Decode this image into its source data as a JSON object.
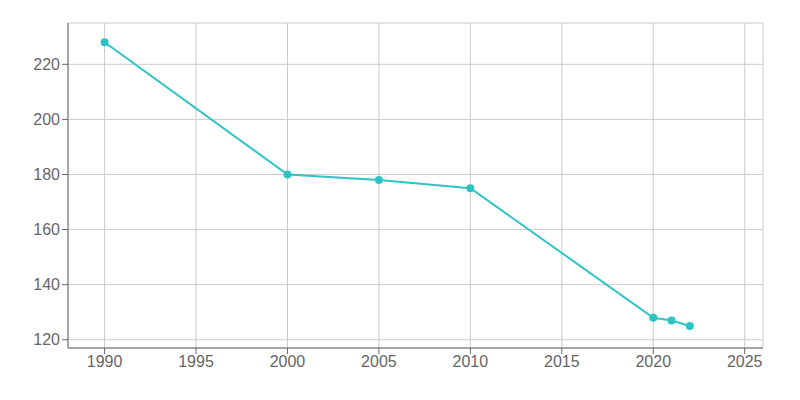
{
  "chart_data": {
    "type": "line",
    "x": [
      1990,
      2000,
      2005,
      2010,
      2020,
      2021,
      2022
    ],
    "values": [
      228,
      180,
      178,
      175,
      128,
      127,
      125
    ],
    "color": "#2ec4c4",
    "marker": "circle",
    "xlim": [
      1988,
      2026
    ],
    "ylim": [
      117,
      235
    ],
    "xticks": [
      1990,
      1995,
      2000,
      2005,
      2010,
      2015,
      2020,
      2025
    ],
    "yticks": [
      120,
      140,
      160,
      180,
      200,
      220
    ],
    "grid": true
  }
}
